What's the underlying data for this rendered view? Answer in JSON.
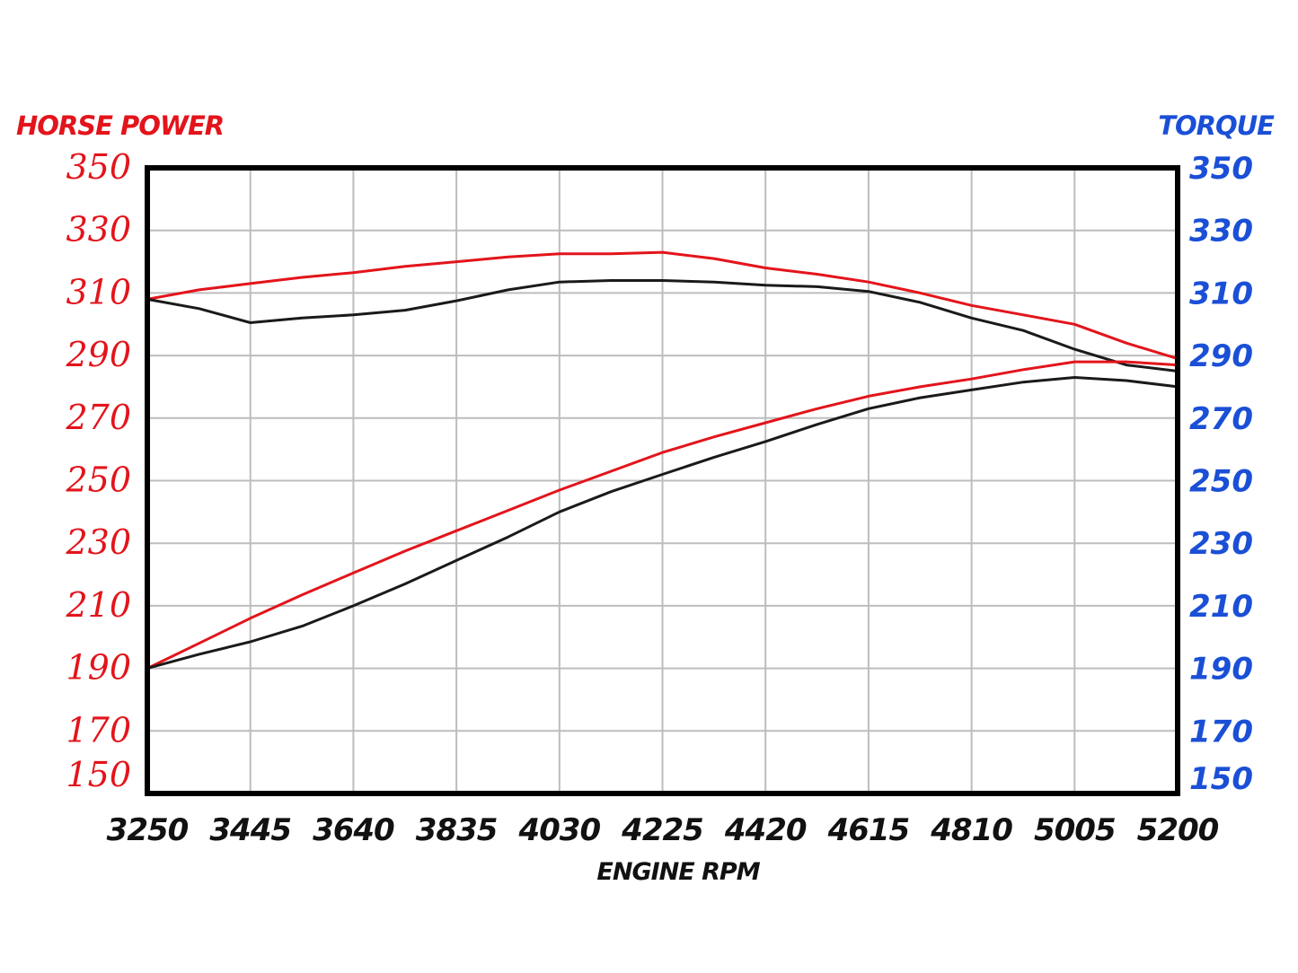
{
  "chart_data": {
    "type": "line",
    "title": "",
    "xlabel": "ENGINE RPM",
    "ylabel_left": "HORSE POWER",
    "ylabel_right": "TORQUE",
    "xlim": [
      3250,
      5200
    ],
    "ylim": [
      150,
      350
    ],
    "x_ticks": [
      "3250",
      "3445",
      "3640",
      "3835",
      "4030",
      "4225",
      "4420",
      "4615",
      "4810",
      "5005",
      "5200"
    ],
    "y_ticks_left": [
      "350",
      "330",
      "310",
      "290",
      "270",
      "250",
      "230",
      "210",
      "190",
      "170",
      "150"
    ],
    "y_ticks_right": [
      "350",
      "330",
      "310",
      "290",
      "270",
      "250",
      "230",
      "210",
      "190",
      "170",
      "150"
    ],
    "grid": true,
    "colors": {
      "red": "#e3141b",
      "black": "#1a1a1a",
      "left_axis": "#e3141b",
      "right_axis": "#1a4fd6",
      "grid": "#bdbdbd"
    },
    "series": [
      {
        "color": "red",
        "x": [
          3250,
          3348,
          3445,
          3543,
          3640,
          3738,
          3835,
          3933,
          4030,
          4128,
          4225,
          4323,
          4420,
          4518,
          4615,
          4713,
          4810,
          4908,
          5005,
          5103,
          5200
        ],
        "y": [
          308,
          311,
          313,
          315,
          316.5,
          318.5,
          320,
          321.5,
          322.5,
          322.5,
          323,
          321,
          318,
          316,
          313.5,
          310,
          306,
          303,
          300,
          294,
          289
        ]
      },
      {
        "color": "black",
        "x": [
          3250,
          3348,
          3445,
          3543,
          3640,
          3738,
          3835,
          3933,
          4030,
          4128,
          4225,
          4323,
          4420,
          4518,
          4615,
          4713,
          4810,
          4908,
          5005,
          5103,
          5200
        ],
        "y": [
          308,
          305,
          300.5,
          302,
          303,
          304.5,
          307.5,
          311,
          313.5,
          314,
          314,
          313.5,
          312.5,
          312,
          310.5,
          307,
          302,
          298,
          292,
          287,
          285
        ]
      },
      {
        "color": "red",
        "x": [
          3250,
          3348,
          3445,
          3543,
          3640,
          3738,
          3835,
          3933,
          4030,
          4128,
          4225,
          4323,
          4420,
          4518,
          4615,
          4713,
          4810,
          4908,
          5005,
          5103,
          5200
        ],
        "y": [
          190,
          198,
          206,
          213.5,
          220.5,
          227.5,
          234,
          240.5,
          247,
          253,
          259,
          264,
          268.5,
          273,
          277,
          280,
          282.5,
          285.5,
          288,
          288,
          287
        ]
      },
      {
        "color": "black",
        "x": [
          3250,
          3348,
          3445,
          3543,
          3640,
          3738,
          3835,
          3933,
          4030,
          4128,
          4225,
          4323,
          4420,
          4518,
          4615,
          4713,
          4810,
          4908,
          5005,
          5103,
          5200
        ],
        "y": [
          190,
          194.5,
          198.5,
          203.5,
          210,
          217,
          224.5,
          232,
          240,
          246.5,
          252,
          257.5,
          262.5,
          268,
          273,
          276.5,
          279,
          281.5,
          283,
          282,
          280
        ]
      }
    ]
  }
}
